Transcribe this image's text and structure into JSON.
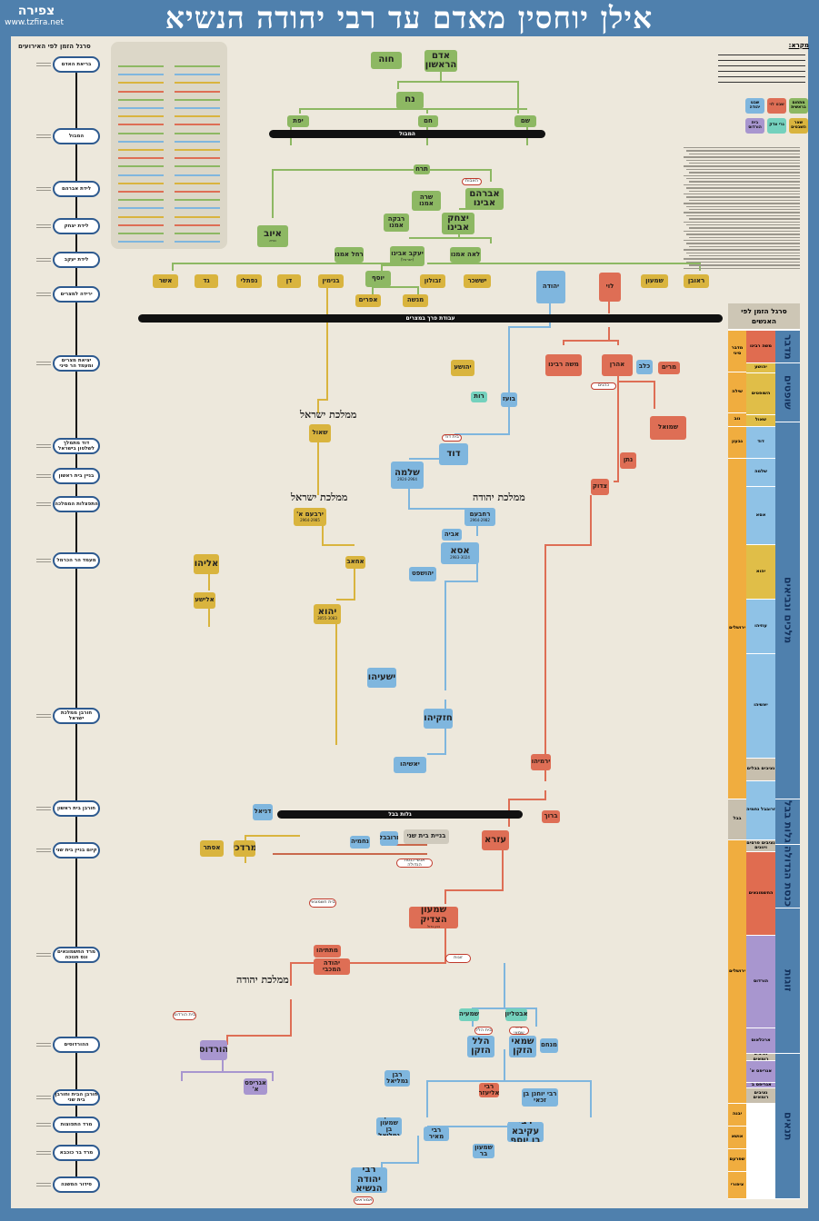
{
  "header": {
    "title": "אילן יוחסין מאדם עד רבי יהודה הנשיא",
    "logo_text": "צפירה",
    "site": "www.tzfira.net"
  },
  "timeline_events": {
    "title": "סרגל הזמן לפי האירועים",
    "items": [
      "בריאת האדם",
      "המבול",
      "לידת אברהם",
      "לידת יצחק",
      "לידת יעקב",
      "ירידה למצרים",
      "יציאת מצרים ומעמד הר סיני",
      "דוד מתמלך לשלטון בישראל",
      "בניין בית ראשון",
      "התפצלות הממלכה",
      "מעמד הר הכרמל",
      "חורבן ממלכת ישראל",
      "חורבן בית ראשון",
      "קיום בניין בית שני",
      "מרד החשמונאים ונס חנוכה",
      "ההורדוסים",
      "חורבן הבית וחורבן בית שני",
      "מרד התפוצות",
      "מרד בר כוכבא",
      "סידור המשנה"
    ]
  },
  "legend": {
    "title": "מקרא:",
    "boxes": [
      {
        "label": "מתחום בראשית",
        "kind": "green"
      },
      {
        "label": "שבט לוי",
        "kind": "red"
      },
      {
        "label": "שבט יהודה",
        "kind": "blue"
      },
      {
        "label": "שאר השבטים",
        "kind": "yellow"
      },
      {
        "label": "גרי צדק",
        "kind": "teal"
      },
      {
        "label": "בית הורדוס",
        "kind": "purple"
      }
    ]
  },
  "bars": {
    "flood": "המבול",
    "egypt": "עבודת פרך במצרים",
    "exile": "גלות בבל"
  },
  "kingdom_labels": {
    "israel1": "ממלכת ישראל",
    "israel2": "ממלכת ישראל",
    "judah1": "ממלכת יהודה",
    "judah2": "ממלכת יהודה"
  },
  "nodes": {
    "adam": {
      "label": "אדם הראשון",
      "kind": "green"
    },
    "chava": {
      "label": "חוה",
      "kind": "green"
    },
    "noach": {
      "label": "נח",
      "kind": "green"
    },
    "shem": {
      "label": "שם",
      "kind": "green"
    },
    "cham": {
      "label": "חם",
      "kind": "green"
    },
    "yefet": {
      "label": "יפת",
      "kind": "green"
    },
    "terach": {
      "label": "תרח",
      "kind": "green"
    },
    "avraham": {
      "label": "אברהם אבינו",
      "kind": "green"
    },
    "sarah": {
      "label": "שרה אמנו",
      "kind": "green"
    },
    "yitzchak": {
      "label": "יצחק אבינו",
      "kind": "green"
    },
    "rivka": {
      "label": "רבקה אמנו",
      "kind": "green"
    },
    "iyov": {
      "label": "איוב",
      "sub": "נביא",
      "kind": "green"
    },
    "yaakov": {
      "label": "יעקב אבינו",
      "sub": "(ישראל)",
      "kind": "green"
    },
    "rachel": {
      "label": "רחל אמנו",
      "kind": "green"
    },
    "leah": {
      "label": "לאה אמנו",
      "kind": "green"
    },
    "yosef": {
      "label": "יוסף",
      "kind": "green"
    },
    "reuven": {
      "label": "ראובן",
      "kind": "yellow"
    },
    "shimon": {
      "label": "שמעון",
      "kind": "yellow"
    },
    "levi": {
      "label": "לוי",
      "kind": "red"
    },
    "yehuda": {
      "label": "יהודה",
      "kind": "blue"
    },
    "yissachar": {
      "label": "יששכר",
      "kind": "yellow"
    },
    "zevulun": {
      "label": "זבולון",
      "kind": "yellow"
    },
    "binyamin": {
      "label": "בנימין",
      "kind": "yellow"
    },
    "dan": {
      "label": "דן",
      "kind": "yellow"
    },
    "naftali": {
      "label": "נפתלי",
      "kind": "yellow"
    },
    "gad": {
      "label": "גד",
      "kind": "yellow"
    },
    "asher": {
      "label": "אשר",
      "kind": "yellow"
    },
    "menashe": {
      "label": "מנשה",
      "kind": "yellow"
    },
    "efraim": {
      "label": "אפרים",
      "kind": "yellow"
    },
    "moshe": {
      "label": "משה רבינו",
      "kind": "red"
    },
    "aharon": {
      "label": "אהרן",
      "kind": "red"
    },
    "miriam": {
      "label": "מרים",
      "kind": "red"
    },
    "kalev": {
      "label": "כלב",
      "kind": "blue"
    },
    "yehoshua": {
      "label": "יהושע",
      "kind": "yellow"
    },
    "ruth": {
      "label": "רות",
      "kind": "teal"
    },
    "boaz": {
      "label": "בועז",
      "kind": "blue"
    },
    "shmuel": {
      "label": "שמואל",
      "kind": "red"
    },
    "shaul": {
      "label": "שאול",
      "kind": "yellow"
    },
    "david": {
      "label": "דוד",
      "kind": "blue"
    },
    "natan": {
      "label": "נתן",
      "kind": "red"
    },
    "tzadok": {
      "label": "צדוק",
      "kind": "red"
    },
    "shlomo": {
      "label": "שלמה",
      "sub": "2924-2964",
      "kind": "blue"
    },
    "yarovam": {
      "label": "ירבעם א'",
      "sub": "2964-2985",
      "kind": "yellow"
    },
    "rechavam": {
      "label": "רחבעם",
      "sub": "2964-2982",
      "kind": "blue"
    },
    "aviya": {
      "label": "אביה",
      "kind": "blue"
    },
    "asa": {
      "label": "אסא",
      "sub": "2983-3024",
      "kind": "blue"
    },
    "achav": {
      "label": "אחאב",
      "kind": "yellow"
    },
    "eliyahu": {
      "label": "אליהו",
      "kind": "yellow"
    },
    "elisha": {
      "label": "אלישע",
      "kind": "yellow"
    },
    "yehoshafat": {
      "label": "יהושפט",
      "kind": "blue"
    },
    "yehu": {
      "label": "יהוא",
      "sub": "3055-3083",
      "kind": "yellow"
    },
    "yeshayahu": {
      "label": "ישעיהו",
      "kind": "blue"
    },
    "chizkiyahu": {
      "label": "חזקיהו",
      "kind": "blue"
    },
    "yoshiyahu": {
      "label": "יאשיהו",
      "kind": "blue"
    },
    "yirmiyahu": {
      "label": "ירמיהו",
      "kind": "red"
    },
    "baruch": {
      "label": "ברוך",
      "kind": "red"
    },
    "daniel": {
      "label": "דניאל",
      "kind": "blue"
    },
    "mordechai": {
      "label": "מרדכי",
      "kind": "yellow"
    },
    "esther": {
      "label": "אסתר",
      "kind": "yellow"
    },
    "zerubavel": {
      "label": "זרובבל",
      "kind": "blue"
    },
    "nechemia": {
      "label": "נחמיה",
      "kind": "blue"
    },
    "ezra": {
      "label": "עזרא",
      "kind": "red"
    },
    "knesset": {
      "label": "אנשי כנסת הגדולה",
      "kind": "outline"
    },
    "bayit_sheni": {
      "label": "בניית בית שני",
      "kind": "gray"
    },
    "shimon_hatzadik": {
      "label": "שמעון הצדיק",
      "sub": "כהן גדול",
      "kind": "red"
    },
    "chashmonaim": {
      "label": "בית חשמונאי",
      "kind": "outline"
    },
    "matityahu": {
      "label": "מתתיהו",
      "kind": "red"
    },
    "yehuda_maccabi": {
      "label": "יהודה המכבי",
      "kind": "red"
    },
    "hordus": {
      "label": "הורדוס",
      "kind": "purple"
    },
    "agripas": {
      "label": "אגריפס א'",
      "kind": "purple"
    },
    "beit_hordus": {
      "label": "בית הורדוס",
      "kind": "outline"
    },
    "shmaya": {
      "label": "שמעיה",
      "kind": "teal"
    },
    "avtalyon": {
      "label": "אבטליון",
      "kind": "teal"
    },
    "hillel": {
      "label": "הלל הזקן",
      "kind": "blue"
    },
    "shamai": {
      "label": "שמאי הזקן",
      "kind": "blue"
    },
    "menachem": {
      "label": "מנחם",
      "kind": "blue"
    },
    "beit_hillel": {
      "label": "בית הלל",
      "kind": "outline"
    },
    "beit_shamai": {
      "label": "בית שמאי",
      "kind": "outline"
    },
    "rabban_gamliel": {
      "label": "רבן גמליאל",
      "kind": "blue"
    },
    "ryochanan": {
      "label": "רבי יוחנן בן זכאי",
      "kind": "blue"
    },
    "rakiva": {
      "label": "רבי עקיבא בן יוסף",
      "kind": "blue"
    },
    "reliezer": {
      "label": "רבי אליעזר",
      "kind": "red"
    },
    "rmeir": {
      "label": "רבי מאיר",
      "kind": "blue"
    },
    "rshimon": {
      "label": "רבי שמעון בר יוחאי",
      "kind": "blue"
    },
    "rshimon_gamliel": {
      "label": "רבן שמעון בן גמליאל",
      "kind": "blue"
    },
    "rebbi": {
      "label": "רבי יהודה הנשיא",
      "kind": "blue"
    },
    "amoraim": {
      "label": "אמוראים",
      "kind": "outline"
    },
    "zugot": {
      "label": "זוגות",
      "kind": "outline"
    },
    "avot": {
      "label": "האבות",
      "kind": "outline"
    },
    "beit_david": {
      "label": "בית דוד",
      "kind": "outline"
    },
    "kohanim": {
      "label": "כהנים",
      "kind": "outline"
    }
  },
  "people_timeline": {
    "title": "סרגל הזמן לפי האנשים",
    "places": [
      {
        "label": "מדבר סיני",
        "kind": "orange"
      },
      {
        "label": "שילה",
        "kind": "orange"
      },
      {
        "label": "נוב",
        "kind": "orange"
      },
      {
        "label": "גבעון",
        "kind": "orange"
      },
      {
        "label": "ירושלים",
        "kind": "orange"
      },
      {
        "label": "בבל",
        "kind": "gray"
      },
      {
        "label": "ירושלים",
        "kind": "orange"
      },
      {
        "label": "יבנה",
        "kind": "orange"
      },
      {
        "label": "אושא",
        "kind": "orange"
      },
      {
        "label": "שפרעם",
        "kind": "orange"
      },
      {
        "label": "ציפורי",
        "kind": "orange"
      }
    ],
    "leaders": [
      {
        "label": "משה רבינו",
        "kind": "red"
      },
      {
        "label": "יהושע",
        "kind": "yellow"
      },
      {
        "label": "השופטים",
        "kind": "yellow"
      },
      {
        "label": "שאול",
        "kind": "yellow"
      },
      {
        "label": "דוד",
        "kind": "blue"
      },
      {
        "label": "שלמה",
        "kind": "blue"
      },
      {
        "label": "אסא",
        "kind": "blue"
      },
      {
        "label": "יהוא",
        "kind": "yellow"
      },
      {
        "label": "עוזיהו",
        "kind": "blue"
      },
      {
        "label": "יאשיהו",
        "kind": "blue"
      },
      {
        "label": "נציבים בבלים",
        "kind": "gray"
      },
      {
        "label": "זרובבל נחמיה",
        "kind": "blue"
      },
      {
        "label": "נציבים פרסים ויוונים",
        "kind": "gray"
      },
      {
        "label": "החשמונאים",
        "kind": "red"
      },
      {
        "label": "הורדוס",
        "kind": "purple"
      },
      {
        "label": "ארכלאוס",
        "kind": "purple"
      },
      {
        "label": "נציבים רומאים",
        "kind": "gray"
      },
      {
        "label": "אגריפס א'",
        "kind": "purple"
      },
      {
        "label": "אגריפס ב'",
        "kind": "purple"
      },
      {
        "label": "נציבים רומאים",
        "kind": "gray"
      }
    ],
    "periods": [
      "מדבר",
      "שופטים",
      "מלכים ונביאים",
      "גלות בבל",
      "כנסת הגדולה",
      "זוגות",
      "תנאים"
    ]
  },
  "colors": {
    "banner": "#4f80ad",
    "paper": "#ede8dc",
    "green": "#8db863",
    "yellow": "#d9b43e",
    "red": "#de6e55",
    "blue": "#7fb6de",
    "purple": "#a896cf",
    "teal": "#74d1bd"
  }
}
